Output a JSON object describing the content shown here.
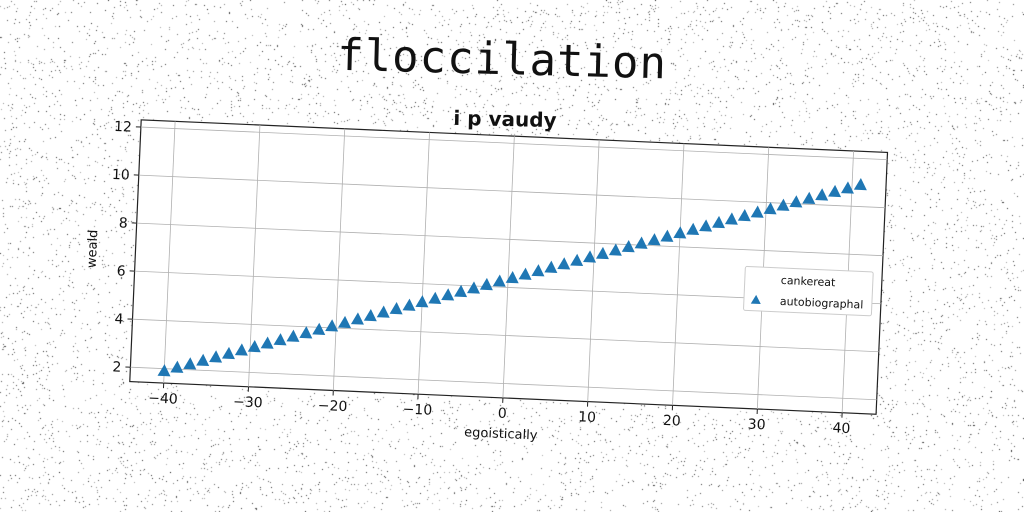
{
  "main_title": "floccilation",
  "chart_data": {
    "type": "scatter",
    "title": "i p vaudy",
    "xlabel": "egoistically",
    "ylabel": "weald",
    "xlim": [
      -44,
      44
    ],
    "ylim": [
      1.4,
      12.3
    ],
    "xticks": [
      -40,
      -30,
      -20,
      -10,
      0,
      10,
      20,
      30,
      40
    ],
    "yticks": [
      2,
      4,
      6,
      8,
      10,
      12
    ],
    "grid": true,
    "legend_position": "right",
    "series": [
      {
        "name": "cankereat",
        "marker": "none",
        "color": "#ffffff",
        "x": [],
        "y": []
      },
      {
        "name": "autobiographal",
        "marker": "triangle",
        "color": "#1f77b4",
        "x_start": -40,
        "x_end": 41,
        "x_step": 1.5,
        "y_start": 1.9,
        "y_end": 10.9
      }
    ]
  }
}
